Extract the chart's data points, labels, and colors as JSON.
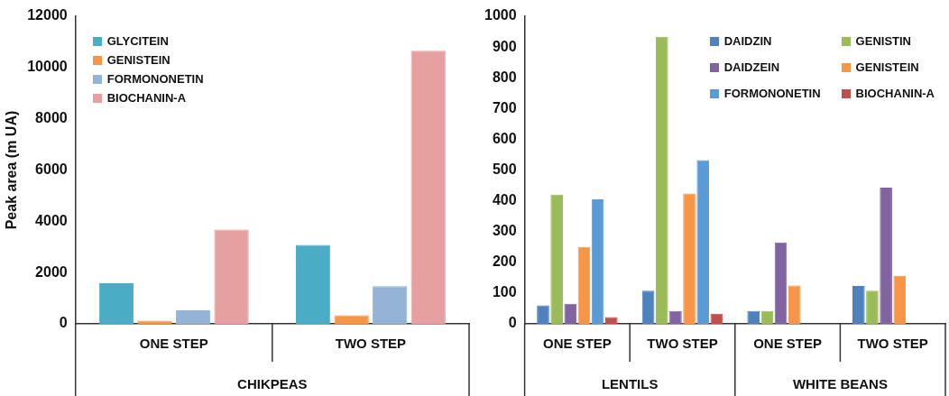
{
  "chart_data": [
    {
      "type": "bar",
      "ylabel": "Peak area (m UA)",
      "categories": [
        "ONE STEP",
        "TWO STEP"
      ],
      "annotations": [
        "CHIKPEAS"
      ],
      "ylim": [
        0,
        12000
      ],
      "yticks": [
        0,
        2000,
        4000,
        6000,
        8000,
        10000,
        12000
      ],
      "grid": false,
      "legend": "top left",
      "series": [
        {
          "name": "GLYCITEIN",
          "color": "#4bacc6",
          "values": [
            1580,
            3080
          ]
        },
        {
          "name": "GENISTEIN",
          "color": "#f79646",
          "values": [
            120,
            330
          ]
        },
        {
          "name": "FORMONONETIN",
          "color": "#95b3d7",
          "values": [
            530,
            1470
          ]
        },
        {
          "name": "BIOCHANIN-A",
          "color": "#e6a0a0",
          "values": [
            3680,
            10650
          ]
        }
      ]
    },
    {
      "type": "bar",
      "categories": [
        "ONE STEP",
        "TWO STEP",
        "ONE STEP",
        "TWO STEP"
      ],
      "annotations": [
        "LENTILS",
        "WHITE BEANS"
      ],
      "ylim": [
        0,
        1000
      ],
      "yticks": [
        0,
        100,
        200,
        300,
        400,
        500,
        600,
        700,
        800,
        900,
        1000
      ],
      "grid": false,
      "legend": "top right",
      "series": [
        {
          "name": "DAIDZIN",
          "color": "#4f81bd",
          "values": [
            60,
            108,
            42,
            123
          ]
        },
        {
          "name": "GENISTIN",
          "color": "#9bbb59",
          "values": [
            420,
            933,
            42,
            108
          ]
        },
        {
          "name": "DAIDZEIN",
          "color": "#8064a2",
          "values": [
            65,
            42,
            265,
            443
          ]
        },
        {
          "name": "GENISTEIN",
          "color": "#f79646",
          "values": [
            250,
            424,
            125,
            156
          ]
        },
        {
          "name": "FORMONONETIN",
          "color": "#5b9bd5",
          "values": [
            405,
            532,
            null,
            null
          ]
        },
        {
          "name": "BIOCHANIN-A",
          "color": "#c0504d",
          "values": [
            22,
            33,
            null,
            null
          ]
        }
      ]
    }
  ]
}
